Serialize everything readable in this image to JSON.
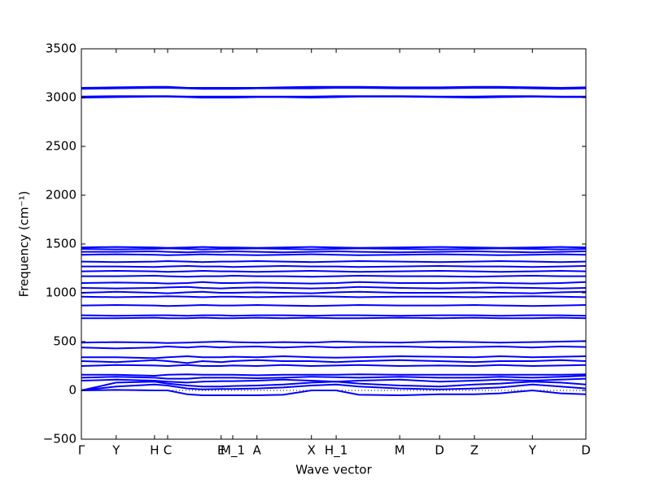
{
  "chart_data": {
    "type": "line",
    "xlabel": "Wave vector",
    "ylabel": "Frequency (cm⁻¹)",
    "x": [
      0,
      0.069,
      0.145,
      0.171,
      0.21,
      0.24,
      0.277,
      0.3,
      0.348,
      0.4,
      0.456,
      0.505,
      0.55,
      0.631,
      0.71,
      0.779,
      0.83,
      0.894,
      0.95,
      1
    ],
    "xlim": [
      0,
      1
    ],
    "xticks": [
      {
        "value": 0,
        "label": "Γ"
      },
      {
        "value": 0.069,
        "label": "Y"
      },
      {
        "value": 0.145,
        "label": "H"
      },
      {
        "value": 0.171,
        "label": "C"
      },
      {
        "value": 0.277,
        "label": "E"
      },
      {
        "value": 0.3,
        "label": "M_1"
      },
      {
        "value": 0.348,
        "label": "A"
      },
      {
        "value": 0.456,
        "label": "X"
      },
      {
        "value": 0.505,
        "label": "H_1"
      },
      {
        "value": 0.631,
        "label": "M"
      },
      {
        "value": 0.71,
        "label": "D"
      },
      {
        "value": 0.779,
        "label": "Z"
      },
      {
        "value": 0.894,
        "label": "Y"
      },
      {
        "value": 1,
        "label": "D"
      }
    ],
    "ylim": [
      -500,
      3500
    ],
    "yticks": [
      {
        "value": -500,
        "label": "−500"
      },
      0,
      500,
      1000,
      1500,
      2000,
      2500,
      3000,
      3500
    ],
    "reference_line": 0,
    "series": [
      {
        "color": "#0000ff",
        "values": [
          0,
          5,
          0,
          0,
          -40,
          -50,
          -50,
          -50,
          -50,
          -45,
          0,
          0,
          -45,
          -50,
          -40,
          -40,
          -30,
          0,
          -30,
          -40
        ]
      },
      {
        "color": "#0000ff",
        "values": [
          0,
          40,
          60,
          50,
          20,
          10,
          15,
          15,
          20,
          30,
          50,
          60,
          40,
          20,
          10,
          20,
          30,
          60,
          40,
          20
        ]
      },
      {
        "color": "#0000ff",
        "values": [
          0,
          80,
          90,
          70,
          50,
          40,
          40,
          45,
          50,
          60,
          80,
          90,
          70,
          50,
          40,
          60,
          70,
          90,
          80,
          60
        ]
      },
      {
        "color": "#0000ff",
        "values": [
          100,
          110,
          100,
          90,
          80,
          90,
          95,
          95,
          100,
          110,
          100,
          90,
          100,
          110,
          90,
          100,
          110,
          100,
          110,
          120
        ]
      },
      {
        "color": "#0000ff",
        "values": [
          130,
          140,
          130,
          120,
          120,
          130,
          130,
          130,
          125,
          130,
          140,
          135,
          130,
          140,
          130,
          130,
          140,
          130,
          140,
          150
        ]
      },
      {
        "color": "#0000ff",
        "values": [
          160,
          160,
          150,
          160,
          165,
          160,
          160,
          160,
          155,
          160,
          160,
          160,
          165,
          160,
          160,
          160,
          160,
          160,
          160,
          165
        ]
      },
      {
        "color": "#0000ff",
        "values": [
          250,
          260,
          255,
          250,
          260,
          250,
          250,
          255,
          250,
          260,
          250,
          255,
          260,
          250,
          255,
          250,
          260,
          250,
          255,
          260
        ]
      },
      {
        "color": "#0000ff",
        "values": [
          300,
          290,
          310,
          300,
          280,
          300,
          290,
          300,
          310,
          300,
          300,
          290,
          300,
          310,
          300,
          290,
          300,
          300,
          310,
          300
        ]
      },
      {
        "color": "#0000ff",
        "values": [
          340,
          340,
          330,
          340,
          350,
          340,
          340,
          345,
          340,
          350,
          340,
          335,
          340,
          350,
          345,
          340,
          350,
          340,
          345,
          350
        ]
      },
      {
        "color": "#0000ff",
        "values": [
          440,
          430,
          440,
          450,
          440,
          450,
          440,
          445,
          450,
          440,
          450,
          440,
          445,
          450,
          440,
          445,
          450,
          440,
          450,
          445
        ]
      },
      {
        "color": "#0000ff",
        "values": [
          490,
          495,
          490,
          485,
          490,
          495,
          500,
          495,
          490,
          495,
          490,
          500,
          495,
          490,
          500,
          495,
          490,
          495,
          500,
          505
        ]
      },
      {
        "color": "#0000ff",
        "values": [
          740,
          740,
          745,
          740,
          740,
          745,
          740,
          740,
          745,
          740,
          745,
          740,
          740,
          745,
          740,
          745,
          740,
          740,
          745,
          740
        ]
      },
      {
        "color": "#0000ff",
        "values": [
          770,
          765,
          770,
          770,
          765,
          770,
          770,
          765,
          770,
          770,
          765,
          770,
          770,
          765,
          770,
          770,
          765,
          770,
          770,
          765
        ]
      },
      {
        "color": "#0000ff",
        "values": [
          870,
          875,
          870,
          865,
          870,
          875,
          870,
          870,
          875,
          870,
          865,
          870,
          875,
          870,
          870,
          875,
          870,
          865,
          870,
          875
        ]
      },
      {
        "color": "#0000ff",
        "values": [
          960,
          955,
          960,
          965,
          960,
          955,
          960,
          960,
          955,
          960,
          965,
          960,
          955,
          960,
          960,
          955,
          960,
          965,
          960,
          955
        ]
      },
      {
        "color": "#0000ff",
        "values": [
          1000,
          1010,
          1000,
          995,
          1005,
          1010,
          1000,
          1000,
          1005,
          1000,
          995,
          1005,
          1010,
          1000,
          1000,
          1005,
          1000,
          995,
          1005,
          1010
        ]
      },
      {
        "color": "#0000ff",
        "values": [
          1050,
          1045,
          1050,
          1055,
          1060,
          1050,
          1045,
          1050,
          1055,
          1050,
          1045,
          1050,
          1060,
          1050,
          1045,
          1050,
          1055,
          1050,
          1045,
          1050
        ]
      },
      {
        "color": "#0000ff",
        "values": [
          1100,
          1105,
          1100,
          1095,
          1100,
          1110,
          1100,
          1100,
          1105,
          1100,
          1095,
          1100,
          1110,
          1100,
          1100,
          1105,
          1100,
          1095,
          1100,
          1110
        ]
      },
      {
        "color": "#0000ff",
        "values": [
          1170,
          1170,
          1175,
          1170,
          1165,
          1170,
          1170,
          1175,
          1170,
          1170,
          1165,
          1170,
          1175,
          1170,
          1170,
          1165,
          1170,
          1175,
          1170,
          1170
        ]
      },
      {
        "color": "#0000ff",
        "values": [
          1220,
          1225,
          1220,
          1215,
          1220,
          1225,
          1220,
          1220,
          1215,
          1220,
          1225,
          1220,
          1215,
          1220,
          1225,
          1220,
          1215,
          1220,
          1225,
          1220
        ]
      },
      {
        "color": "#0000ff",
        "values": [
          1270,
          1270,
          1265,
          1270,
          1275,
          1270,
          1270,
          1265,
          1270,
          1275,
          1270,
          1270,
          1265,
          1270,
          1275,
          1270,
          1270,
          1265,
          1270,
          1275
        ]
      },
      {
        "color": "#0000ff",
        "values": [
          1320,
          1315,
          1320,
          1325,
          1320,
          1315,
          1320,
          1320,
          1325,
          1320,
          1315,
          1320,
          1325,
          1320,
          1315,
          1320,
          1325,
          1320,
          1315,
          1320
        ]
      },
      {
        "color": "#0000ff",
        "values": [
          1390,
          1395,
          1390,
          1385,
          1390,
          1395,
          1390,
          1390,
          1385,
          1390,
          1395,
          1390,
          1385,
          1390,
          1395,
          1390,
          1385,
          1390,
          1395,
          1390
        ]
      },
      {
        "color": "#0000ff",
        "values": [
          1420,
          1420,
          1425,
          1420,
          1415,
          1420,
          1420,
          1425,
          1420,
          1415,
          1420,
          1425,
          1420,
          1415,
          1420,
          1425,
          1420,
          1415,
          1420,
          1425
        ]
      },
      {
        "color": "#0000ff",
        "values": [
          1450,
          1445,
          1450,
          1455,
          1450,
          1445,
          1450,
          1450,
          1455,
          1450,
          1445,
          1450,
          1455,
          1450,
          1445,
          1450,
          1455,
          1450,
          1445,
          1450
        ]
      },
      {
        "color": "#0000ff",
        "values": [
          1465,
          1470,
          1465,
          1460,
          1465,
          1470,
          1465,
          1465,
          1460,
          1465,
          1470,
          1465,
          1460,
          1465,
          1470,
          1465,
          1460,
          1465,
          1470,
          1465
        ]
      },
      {
        "color": "#0000ff",
        "values": [
          3000,
          3005,
          3010,
          3010,
          3005,
          3000,
          3000,
          3000,
          3005,
          3005,
          3000,
          3005,
          3010,
          3010,
          3005,
          3000,
          3005,
          3010,
          3005,
          3005
        ]
      },
      {
        "color": "#0000ff",
        "values": [
          3010,
          3015,
          3015,
          3015,
          3010,
          3010,
          3010,
          3010,
          3010,
          3010,
          3010,
          3015,
          3015,
          3015,
          3010,
          3010,
          3015,
          3015,
          3010,
          3010
        ]
      },
      {
        "color": "#0000ff",
        "values": [
          3090,
          3095,
          3100,
          3100,
          3095,
          3090,
          3090,
          3090,
          3095,
          3095,
          3095,
          3100,
          3100,
          3095,
          3095,
          3100,
          3100,
          3095,
          3090,
          3095
        ]
      },
      {
        "color": "#0000ff",
        "values": [
          3100,
          3105,
          3110,
          3110,
          3100,
          3100,
          3100,
          3100,
          3100,
          3105,
          3110,
          3110,
          3110,
          3105,
          3105,
          3110,
          3110,
          3105,
          3100,
          3105
        ]
      }
    ]
  }
}
